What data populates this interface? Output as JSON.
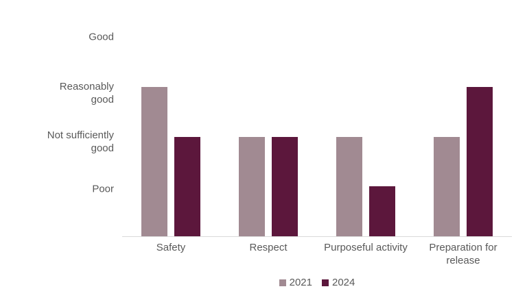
{
  "chart_data": {
    "type": "bar",
    "title": "",
    "categories": [
      "Safety",
      "Respect",
      "Purposeful activity",
      "Preparation for release"
    ],
    "series": [
      {
        "name": "2021",
        "color": "#a18a92",
        "values": [
          3,
          2,
          2,
          2
        ]
      },
      {
        "name": "2024",
        "color": "#5c173c",
        "values": [
          2,
          2,
          1,
          3
        ]
      }
    ],
    "y_axis": {
      "tick_labels": [
        "Good",
        "Reasonably good",
        "Not sufficiently good",
        "Poor"
      ],
      "tick_values": [
        4,
        3,
        2,
        1
      ],
      "range": [
        0,
        4
      ]
    },
    "rating_scale": {
      "Good": 4,
      "Reasonably good": 3,
      "Not sufficiently good": 2,
      "Poor": 1
    },
    "legend": {
      "position": "bottom",
      "entries": [
        "2021",
        "2024"
      ]
    },
    "grid": false,
    "colors": {
      "axis_line": "#d9d9d9",
      "text": "#595959",
      "background": "#ffffff"
    }
  }
}
